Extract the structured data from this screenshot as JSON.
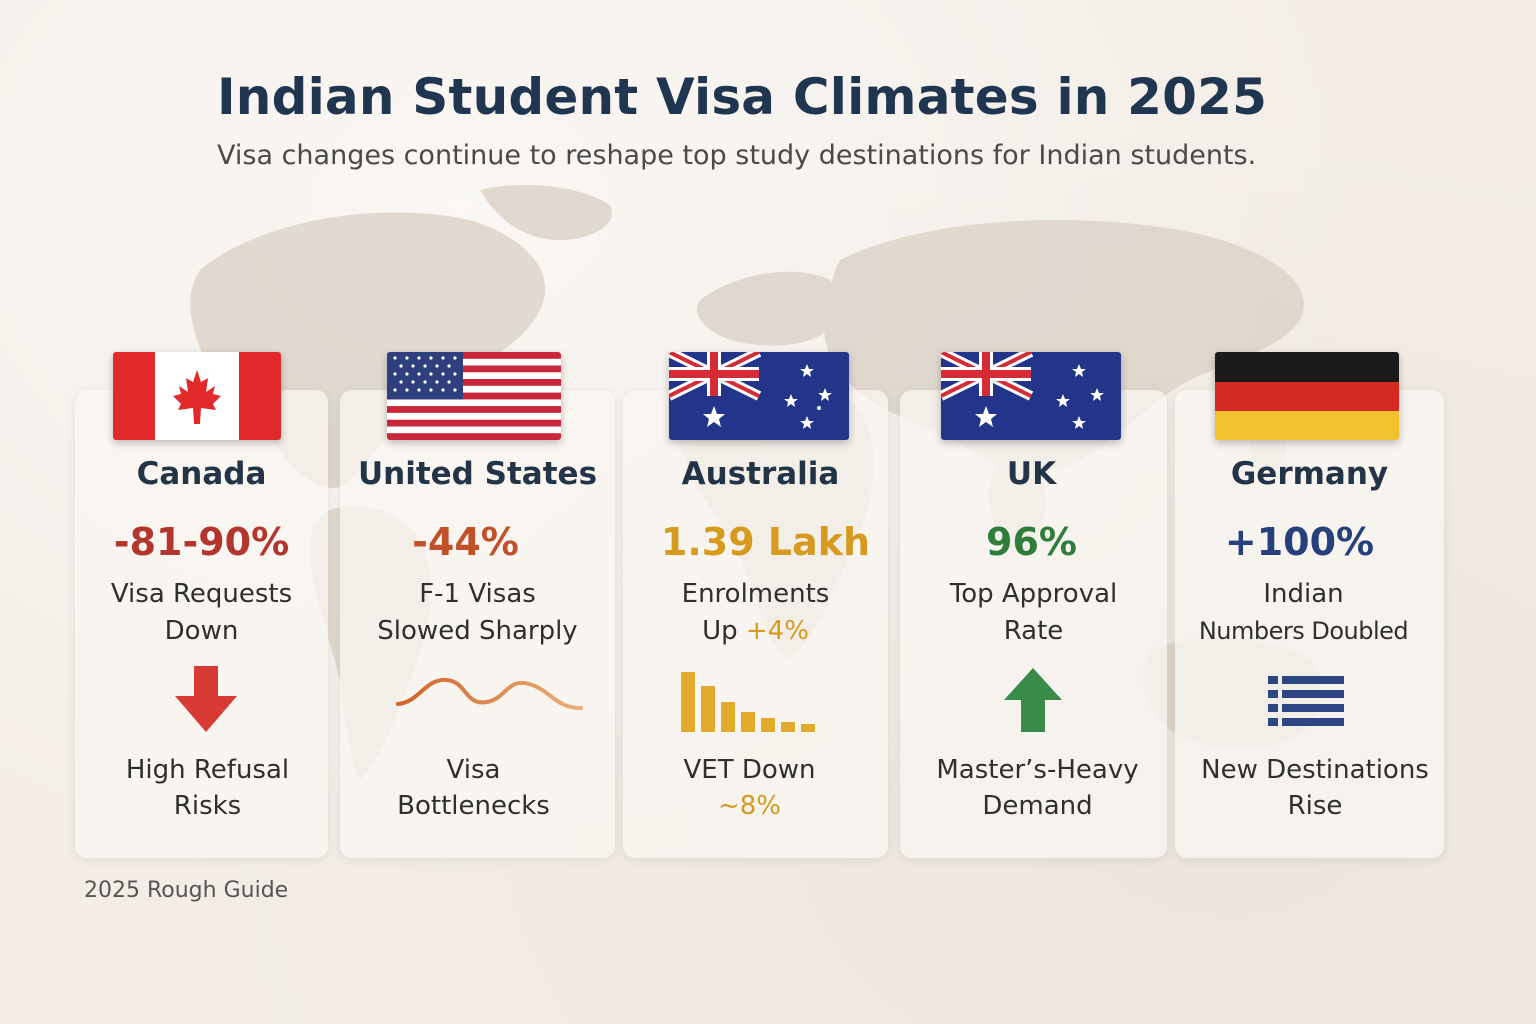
{
  "header": {
    "title": "Indian Student Visa Climates in 2025",
    "subtitle": "Visa changes continue to reshape top study destinations for Indian students."
  },
  "countries": [
    {
      "name": "Canada",
      "stat": "-81-90%",
      "stat_color": "#b3362e",
      "desc_line1": "Visa Requests",
      "desc_line2": "Down",
      "icon": "down-arrow-icon",
      "foot_line1": "High Refusal",
      "foot_line2": "Risks"
    },
    {
      "name": "United States",
      "stat": "-44%",
      "stat_color": "#c0512a",
      "desc_line1": "F-1 Visas",
      "desc_line2": "Slowed Sharply",
      "icon": "wave-line-icon",
      "foot_line1": "Visa",
      "foot_line2": "Bottlenecks"
    },
    {
      "name": "Australia",
      "stat": "1.39 Lakh",
      "stat_color": "#d69a1e",
      "desc_line1": "Enrolments",
      "desc_line2_prefix": "Up ",
      "desc_line2_highlight": "+4%",
      "icon": "bar-chart-icon",
      "foot_line1": "VET Down",
      "foot_line2": "~8%"
    },
    {
      "name": "UK",
      "stat": "96%",
      "stat_color": "#2f7d3a",
      "desc_line1": "Top Approval",
      "desc_line2": "Rate",
      "icon": "up-arrow-icon",
      "foot_line1": "Master’s-Heavy",
      "foot_line2": "Demand"
    },
    {
      "name": "Germany",
      "stat": "+100%",
      "stat_color": "#25407a",
      "desc_line1": "Indian",
      "desc_line2": "Numbers Doubled",
      "icon": "list-icon",
      "foot_line1": "New Destinations",
      "foot_line2": "Rise"
    }
  ],
  "footer": {
    "label": "2025 Rough Guide"
  }
}
